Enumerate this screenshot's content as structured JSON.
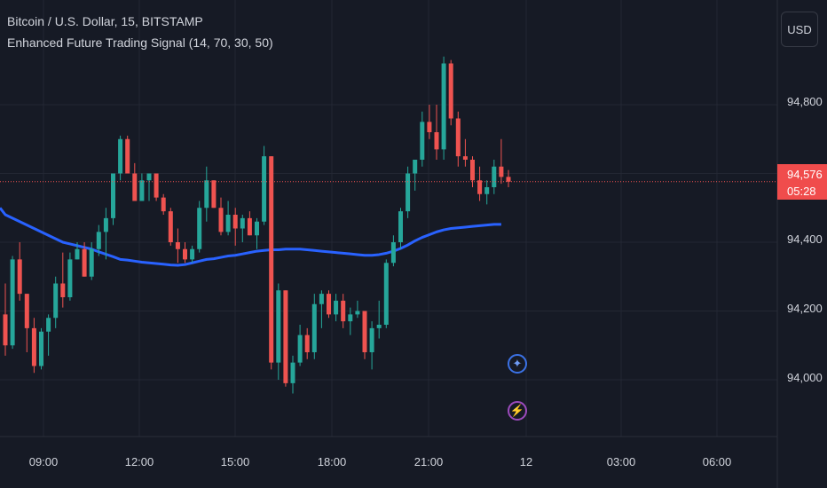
{
  "header": {
    "symbol_title": "Bitcoin / U.S. Dollar, 15, BITSTAMP",
    "indicator_title": "Enhanced Future Trading Signal (14, 70, 30, 50)"
  },
  "currency_button": "USD",
  "price_badge": {
    "price": "94,576",
    "countdown": "05:28"
  },
  "colors": {
    "background": "#161a25",
    "up": "#26a69a",
    "down": "#ef5350",
    "ma": "#2962ff",
    "grid": "#232733",
    "text": "#d1d4dc",
    "badge": "#f04c4c"
  },
  "markers": [
    {
      "name": "sparkle-signal-icon",
      "glyph": "✦"
    },
    {
      "name": "lightning-signal-icon",
      "glyph": "⚡"
    }
  ],
  "chart_data": {
    "type": "candlestick",
    "title": "Bitcoin / U.S. Dollar, 15, BITSTAMP",
    "y_ticks": [
      "94,800",
      "94,600",
      "94,400",
      "94,200",
      "94,000"
    ],
    "x_ticks": [
      "09:00",
      "12:00",
      "15:00",
      "18:00",
      "21:00",
      "12",
      "03:00",
      "06:00"
    ],
    "ylim": [
      93850,
      95000
    ],
    "last_price": 94576,
    "candles": [
      [
        94190,
        94280,
        94070,
        94100
      ],
      [
        94100,
        94360,
        94090,
        94350
      ],
      [
        94350,
        94400,
        94230,
        94250
      ],
      [
        94250,
        94250,
        94080,
        94150
      ],
      [
        94150,
        94180,
        94020,
        94040
      ],
      [
        94040,
        94150,
        94030,
        94140
      ],
      [
        94140,
        94190,
        94070,
        94180
      ],
      [
        94180,
        94300,
        94150,
        94280
      ],
      [
        94280,
        94370,
        94210,
        94240
      ],
      [
        94240,
        94370,
        94230,
        94350
      ],
      [
        94350,
        94400,
        94350,
        94380
      ],
      [
        94380,
        94400,
        94300,
        94300
      ],
      [
        94300,
        94400,
        94290,
        94380
      ],
      [
        94380,
        94450,
        94360,
        94430
      ],
      [
        94430,
        94500,
        94350,
        94470
      ],
      [
        94470,
        94600,
        94450,
        94600
      ],
      [
        94600,
        94710,
        94580,
        94700
      ],
      [
        94700,
        94710,
        94600,
        94600
      ],
      [
        94600,
        94630,
        94520,
        94520
      ],
      [
        94520,
        94600,
        94520,
        94580
      ],
      [
        94580,
        94600,
        94520,
        94600
      ],
      [
        94600,
        94600,
        94520,
        94530
      ],
      [
        94530,
        94540,
        94480,
        94490
      ],
      [
        94490,
        94500,
        94390,
        94400
      ],
      [
        94400,
        94440,
        94340,
        94380
      ],
      [
        94380,
        94400,
        94340,
        94350
      ],
      [
        94350,
        94390,
        94340,
        94380
      ],
      [
        94380,
        94520,
        94370,
        94500
      ],
      [
        94500,
        94620,
        94460,
        94580
      ],
      [
        94580,
        94580,
        94500,
        94500
      ],
      [
        94500,
        94530,
        94420,
        94430
      ],
      [
        94430,
        94520,
        94420,
        94480
      ],
      [
        94480,
        94500,
        94390,
        94440
      ],
      [
        94440,
        94480,
        94400,
        94470
      ],
      [
        94470,
        94490,
        94420,
        94420
      ],
      [
        94420,
        94470,
        94380,
        94460
      ],
      [
        94460,
        94680,
        94450,
        94650
      ],
      [
        94650,
        94650,
        94030,
        94050
      ],
      [
        94050,
        94280,
        94000,
        94260
      ],
      [
        94260,
        94260,
        93980,
        93990
      ],
      [
        93990,
        94070,
        93960,
        94050
      ],
      [
        94050,
        94160,
        94040,
        94130
      ],
      [
        94130,
        94150,
        94060,
        94080
      ],
      [
        94080,
        94250,
        94060,
        94220
      ],
      [
        94220,
        94260,
        94150,
        94250
      ],
      [
        94250,
        94260,
        94180,
        94190
      ],
      [
        94190,
        94250,
        94170,
        94230
      ],
      [
        94230,
        94250,
        94150,
        94170
      ],
      [
        94170,
        94210,
        94130,
        94190
      ],
      [
        94190,
        94230,
        94180,
        94200
      ],
      [
        94200,
        94200,
        94060,
        94080
      ],
      [
        94080,
        94170,
        94030,
        94150
      ],
      [
        94150,
        94230,
        94120,
        94160
      ],
      [
        94160,
        94350,
        94150,
        94340
      ],
      [
        94340,
        94420,
        94330,
        94400
      ],
      [
        94400,
        94500,
        94380,
        94490
      ],
      [
        94490,
        94620,
        94470,
        94600
      ],
      [
        94600,
        94640,
        94550,
        94640
      ],
      [
        94640,
        94780,
        94620,
        94750
      ],
      [
        94750,
        94800,
        94700,
        94720
      ],
      [
        94720,
        94800,
        94640,
        94670
      ],
      [
        94670,
        94940,
        94640,
        94920
      ],
      [
        94920,
        94930,
        94740,
        94760
      ],
      [
        94760,
        94780,
        94620,
        94650
      ],
      [
        94650,
        94700,
        94620,
        94640
      ],
      [
        94640,
        94650,
        94560,
        94580
      ],
      [
        94580,
        94620,
        94520,
        94540
      ],
      [
        94540,
        94580,
        94510,
        94560
      ],
      [
        94560,
        94640,
        94540,
        94620
      ],
      [
        94620,
        94700,
        94570,
        94590
      ],
      [
        94590,
        94610,
        94560,
        94576
      ]
    ],
    "ma_series": [
      94480,
      94470,
      94460,
      94450,
      94440,
      94430,
      94420,
      94410,
      94400,
      94395,
      94390,
      94385,
      94380,
      94372,
      94365,
      94358,
      94350,
      94348,
      94345,
      94342,
      94340,
      94338,
      94336,
      94334,
      94333,
      94335,
      94340,
      94345,
      94350,
      94352,
      94356,
      94360,
      94362,
      94366,
      94370,
      94374,
      94376,
      94378,
      94378,
      94380,
      94380,
      94380,
      94378,
      94376,
      94374,
      94372,
      94370,
      94368,
      94366,
      94364,
      94362,
      94362,
      94364,
      94368,
      94374,
      94382,
      94392,
      94404,
      94414,
      94422,
      94430,
      94436,
      94440,
      94442,
      94444,
      94446,
      94448,
      94450,
      94452,
      94452
    ]
  }
}
